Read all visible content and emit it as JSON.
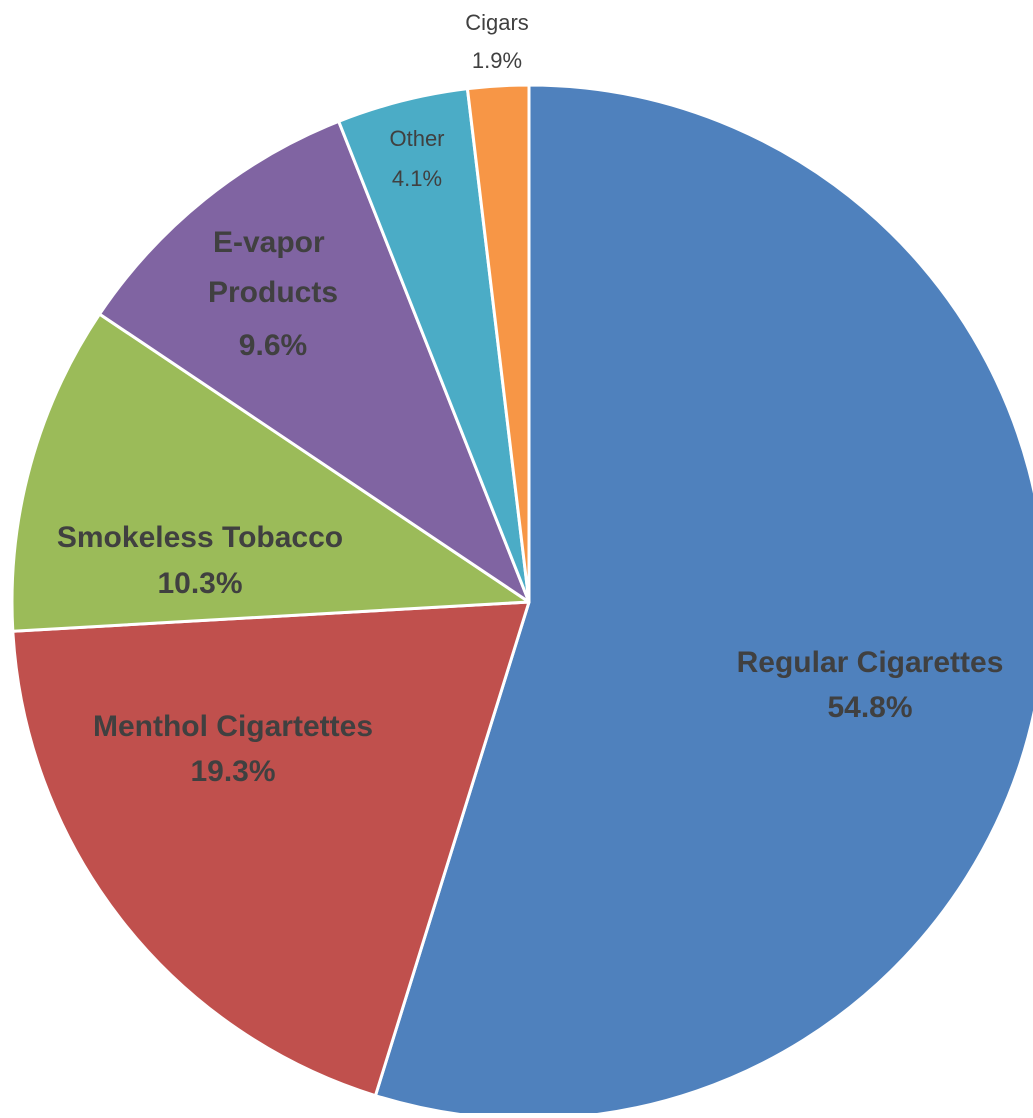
{
  "chart_data": {
    "type": "pie",
    "title": "",
    "start_angle": "12 o'clock",
    "direction": "clockwise",
    "slices": [
      {
        "label": "Regular Cigarettes",
        "value": 54.8,
        "value_label": "54.8%",
        "color": "#4F81BD"
      },
      {
        "label": "Menthol Cigartettes",
        "value": 19.3,
        "value_label": "19.3%",
        "color": "#C0504D"
      },
      {
        "label": "Smokeless Tobacco",
        "value": 10.3,
        "value_label": "10.3%",
        "color": "#9BBB59"
      },
      {
        "label": "E-vapor Products",
        "value": 9.6,
        "value_label": "9.6%",
        "color": "#8064A2"
      },
      {
        "label": "Other",
        "value": 4.1,
        "value_label": "4.1%",
        "color": "#4BACC6"
      },
      {
        "label": "Cigars",
        "value": 1.9,
        "value_label": "1.9%",
        "color": "#F79646"
      }
    ]
  }
}
